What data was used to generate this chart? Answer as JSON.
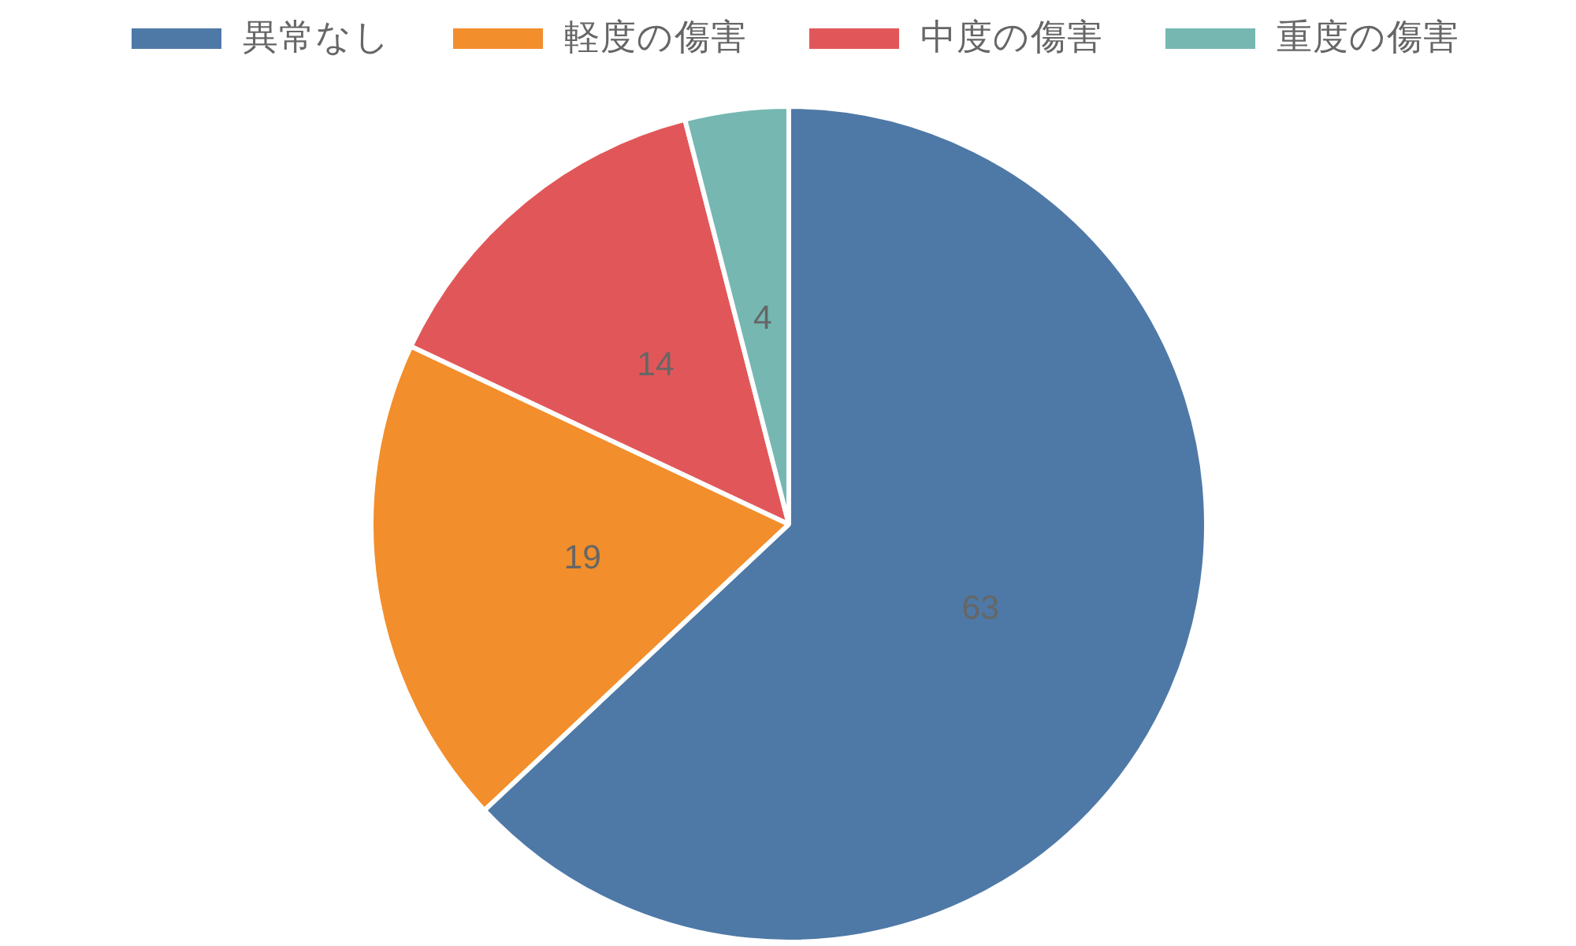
{
  "chart_data": {
    "type": "pie",
    "categories": [
      "異常なし",
      "軽度の傷害",
      "中度の傷害",
      "重度の傷害"
    ],
    "values": [
      63,
      19,
      14,
      4
    ],
    "colors": [
      "#4e79a7",
      "#f28e2b",
      "#e15759",
      "#76b7b2"
    ],
    "data_labels": true,
    "legend": "top"
  }
}
